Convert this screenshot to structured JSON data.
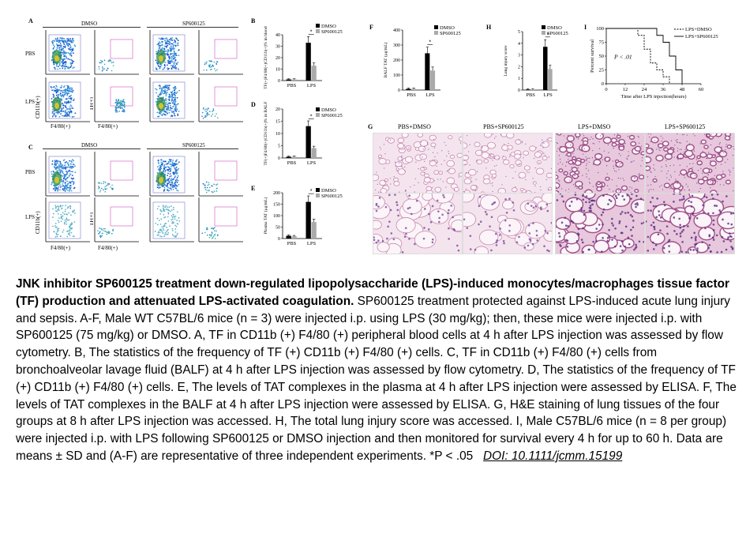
{
  "figure": {
    "panel_a": {
      "letter": "A",
      "col_headers": [
        "DMSO",
        "SP600125"
      ],
      "row_labels": [
        "PBS",
        "LPS"
      ],
      "ylabel_left": "CD11b(+)",
      "xlabel_left": "F4/80(+)",
      "ylabel_right": "TF(+)",
      "xlabel_right": "F4/80(+)"
    },
    "panel_c": {
      "letter": "C",
      "col_headers": [
        "DMSO",
        "SP600125"
      ],
      "row_labels": [
        "PBS",
        "LPS"
      ],
      "ylabel_left": "CD11b(+)",
      "xlabel_left": "F4/80(+)",
      "ylabel_right": "TF(+)",
      "xlabel_right": "F4/80(+)"
    },
    "panel_g": {
      "letter": "G",
      "col_headers": [
        "PBS+DMSO",
        "PBS+SP600125",
        "LPS+DMSO",
        "LPS+SP600125"
      ]
    }
  },
  "chart_data": [
    {
      "panel": "B",
      "type": "bar",
      "categories": [
        "PBS",
        "LPS"
      ],
      "ylabel": "TF(+)F4/80(+)CD11b(+)% in blood",
      "ylim": [
        0,
        40
      ],
      "yticks": [
        0,
        10,
        20,
        30,
        40
      ],
      "series": [
        {
          "name": "DMSO",
          "values": [
            1,
            33
          ],
          "color": "#000000"
        },
        {
          "name": "SP600125",
          "values": [
            1,
            13
          ],
          "color": "#aaaaaa"
        }
      ],
      "significance": "*"
    },
    {
      "panel": "D",
      "type": "bar",
      "categories": [
        "PBS",
        "LPS"
      ],
      "ylabel": "TF(+)F4/80(+)CD11b(+)% in BALF",
      "ylim": [
        0,
        20
      ],
      "yticks": [
        0,
        5,
        10,
        15,
        20
      ],
      "series": [
        {
          "name": "DMSO",
          "values": [
            0.5,
            13
          ],
          "color": "#000000"
        },
        {
          "name": "SP600125",
          "values": [
            0.5,
            4
          ],
          "color": "#aaaaaa"
        }
      ],
      "significance": "*"
    },
    {
      "panel": "E",
      "type": "bar",
      "categories": [
        "PBS",
        "LPS"
      ],
      "ylabel": "Plasma TAT (μg/mL)",
      "ylim": [
        0,
        200
      ],
      "yticks": [
        0,
        50,
        100,
        150,
        200
      ],
      "series": [
        {
          "name": "DMSO",
          "values": [
            12,
            160
          ],
          "color": "#000000"
        },
        {
          "name": "SP600125",
          "values": [
            10,
            72
          ],
          "color": "#aaaaaa"
        }
      ],
      "significance": "*"
    },
    {
      "panel": "F",
      "type": "bar",
      "categories": [
        "PBS",
        "LPS"
      ],
      "ylabel": "BALF TAT (μg/mL)",
      "ylim": [
        0,
        400
      ],
      "yticks": [
        0,
        100,
        200,
        300,
        400
      ],
      "series": [
        {
          "name": "DMSO",
          "values": [
            8,
            245
          ],
          "color": "#000000"
        },
        {
          "name": "SP600125",
          "values": [
            8,
            130
          ],
          "color": "#aaaaaa"
        }
      ],
      "significance": "*"
    },
    {
      "panel": "H",
      "type": "bar",
      "categories": [
        "PBS",
        "LPS"
      ],
      "ylabel": "Lung injury score",
      "ylim": [
        0,
        5
      ],
      "yticks": [
        0,
        1,
        2,
        3,
        4,
        5
      ],
      "series": [
        {
          "name": "DMSO",
          "values": [
            0.05,
            3.7
          ],
          "color": "#000000"
        },
        {
          "name": "SP600125",
          "values": [
            0.05,
            1.8
          ],
          "color": "#aaaaaa"
        }
      ],
      "significance": "*"
    },
    {
      "panel": "I",
      "type": "line",
      "xlabel": "Time after LPS injection(hours)",
      "ylabel": "Percent survival",
      "xlim": [
        0,
        60
      ],
      "ylim": [
        0,
        100
      ],
      "xticks": [
        0,
        12,
        24,
        36,
        48,
        60
      ],
      "yticks": [
        0,
        25,
        50,
        75,
        100
      ],
      "annotation": "P < .01",
      "series": [
        {
          "name": "LPS+DMSO",
          "style": "dashed",
          "x": [
            0,
            20,
            20,
            24,
            24,
            28,
            28,
            32,
            32,
            36,
            36,
            40,
            40
          ],
          "y": [
            100,
            100,
            87.5,
            87.5,
            62.5,
            62.5,
            37.5,
            37.5,
            25,
            25,
            12.5,
            12.5,
            0
          ]
        },
        {
          "name": "LPS+SP600125",
          "style": "solid",
          "x": [
            0,
            32,
            32,
            36,
            36,
            40,
            40,
            44,
            44,
            48,
            48
          ],
          "y": [
            100,
            100,
            87.5,
            87.5,
            75,
            75,
            50,
            50,
            25,
            25,
            0
          ]
        }
      ]
    }
  ],
  "caption": {
    "title": "JNK inhibitor SP600125 treatment down-regulated lipopolysaccharide (LPS)-induced monocytes/macrophages tissue factor (TF) production and attenuated LPS-activated coagulation.",
    "body": "SP600125 treatment protected against LPS-induced acute lung injury and sepsis. A-F, Male WT C57BL/6 mice (n = 3) were injected i.p. using LPS (30 mg/kg); then, these mice were injected i.p. with SP600125 (75 mg/kg) or DMSO. A, TF in CD11b (+) F4/80 (+) peripheral blood cells at 4 h after LPS injection was assessed by flow cytometry. B, The statistics of the frequency of TF (+) CD11b (+) F4/80 (+) cells. C, TF in CD11b (+) F4/80 (+) cells from bronchoalveolar lavage fluid (BALF) at 4 h after LPS injection was assessed by flow cytometry. D, The statistics of the frequency of TF (+) CD11b (+) F4/80 (+) cells. E, The levels of TAT complexes in the plasma at 4 h after LPS injection were assessed by ELISA. F, The levels of TAT complexes in the BALF at 4 h after LPS injection were assessed by ELISA. G, H&E staining of lung tissues of the four groups at 8 h after LPS injection was accessed. H, The total lung injury score was accessed. I, Male C57BL/6 mice (n = 8 per group) were injected i.p. with LPS following SP600125 or DMSO injection and then monitored for survival every 4 h for up to 60 h. Data are means ± SD and (A-F) are representative of three independent experiments. *P < .05",
    "doi": "DOI: 10.1111/jcmm.15199"
  }
}
